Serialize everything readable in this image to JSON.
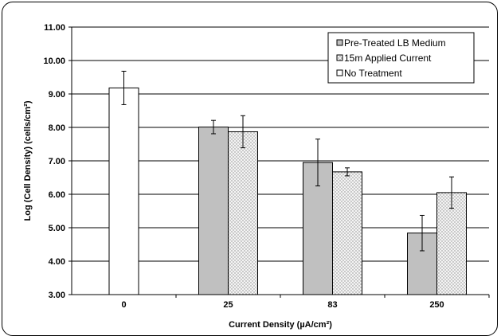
{
  "chart_data": {
    "type": "bar",
    "categories": [
      "0",
      "25",
      "83",
      "250"
    ],
    "series": [
      {
        "name": "Pre-Treated LB Medium",
        "color": "#c0c0c0",
        "pattern": "solid",
        "values": [
          null,
          8.01,
          6.95,
          4.84
        ],
        "errors": [
          null,
          0.2,
          0.7,
          0.53
        ]
      },
      {
        "name": "15m Applied Current",
        "color": "#f2f2f2",
        "pattern": "dotted",
        "values": [
          null,
          7.87,
          6.67,
          6.05
        ],
        "errors": [
          null,
          0.48,
          0.12,
          0.47
        ]
      },
      {
        "name": "No Treatment",
        "color": "#ffffff",
        "pattern": "solid",
        "values": [
          9.18,
          null,
          null,
          null
        ],
        "errors": [
          0.5,
          null,
          null,
          null
        ]
      }
    ],
    "ylim": [
      3.0,
      11.0
    ],
    "yticks": [
      "3.00",
      "4.00",
      "5.00",
      "6.00",
      "7.00",
      "8.00",
      "9.00",
      "10.00",
      "11.00"
    ],
    "xlabel": "Current Density (µA/cm²)",
    "ylabel": "Log (Cell Density) (cells/cm²)",
    "grid": true,
    "legend_position": "top-right"
  }
}
